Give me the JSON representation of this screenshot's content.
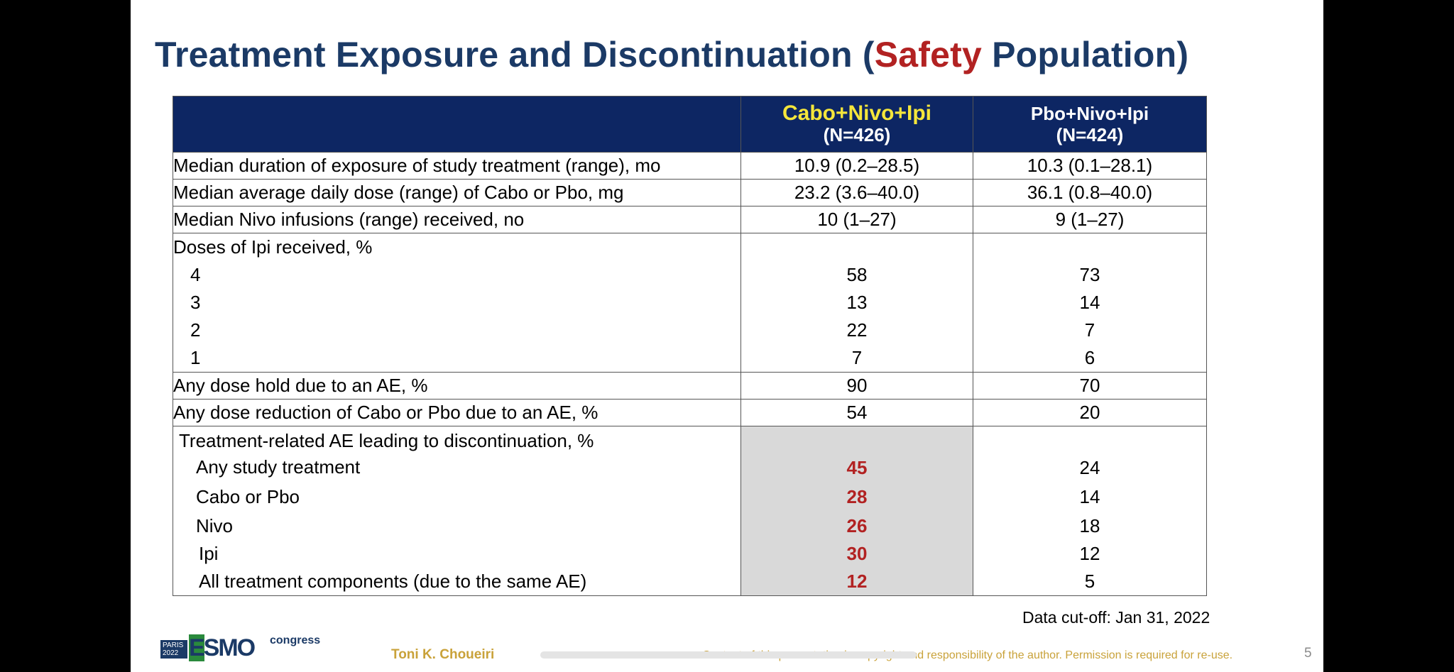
{
  "title": {
    "part1": "Treatment Exposure and Discontinuation (",
    "accent": "Safety",
    "part2": " Population)"
  },
  "table": {
    "arm1": {
      "name": "Cabo+Nivo+Ipi",
      "n": "(N=426)"
    },
    "arm2": {
      "name": "Pbo+Nivo+Ipi",
      "n": "(N=424)"
    },
    "rows": [
      {
        "label": "Median duration of exposure of study treatment (range), mo",
        "v1": "10.9 (0.2–28.5)",
        "v2": "10.3 (0.1–28.1)"
      },
      {
        "label": "Median average daily dose (range) of Cabo or Pbo, mg",
        "v1": "23.2 (3.6–40.0)",
        "v2": "36.1 (0.8–40.0)"
      },
      {
        "label": "Median Nivo infusions (range) received, no",
        "v1": "10 (1–27)",
        "v2": "9 (1–27)"
      }
    ],
    "ipi_doses": {
      "label": "Doses of Ipi received, %",
      "items": [
        {
          "label": "4",
          "v1": "58",
          "v2": "73"
        },
        {
          "label": "3",
          "v1": "13",
          "v2": "14"
        },
        {
          "label": "2",
          "v1": "22",
          "v2": "7"
        },
        {
          "label": "1",
          "v1": "7",
          "v2": "6"
        }
      ]
    },
    "dose_hold": {
      "label": "Any dose hold due to an AE, %",
      "v1": "90",
      "v2": "70"
    },
    "dose_reduction": {
      "label": "Any dose reduction of Cabo or Pbo due to an AE, %",
      "v1": "54",
      "v2": "20"
    },
    "discontinuation": {
      "label": "Treatment-related AE leading to discontinuation, %",
      "items": [
        {
          "label": "Any study treatment",
          "v1": "45",
          "v2": "24"
        },
        {
          "label": "Cabo or Pbo",
          "v1": "28",
          "v2": "14"
        },
        {
          "label": "Nivo",
          "v1": "26",
          "v2": "18"
        },
        {
          "label": "Ipi",
          "v1": "30",
          "v2": "12"
        },
        {
          "label": "All treatment components (due to the same AE)",
          "v1": "12",
          "v2": "5"
        }
      ]
    }
  },
  "cutoff": "Data cut-off: Jan 31, 2022",
  "footer": {
    "logo_paris": "PARIS 2022",
    "logo_esmo": "ESMO",
    "logo_congress": "congress",
    "author": "Toni K. Choueiri",
    "copyright": "Content of this presentation is copyright and responsibility of the author. Permission is required for re-use.",
    "page": "5"
  },
  "colors": {
    "navy": "#1b3a66",
    "header_bg": "#0d2663",
    "accent_red": "#b22222",
    "arm1_yellow": "#f5e63b",
    "shade": "#d9d9d9",
    "footer_gold": "#c9a23a"
  }
}
